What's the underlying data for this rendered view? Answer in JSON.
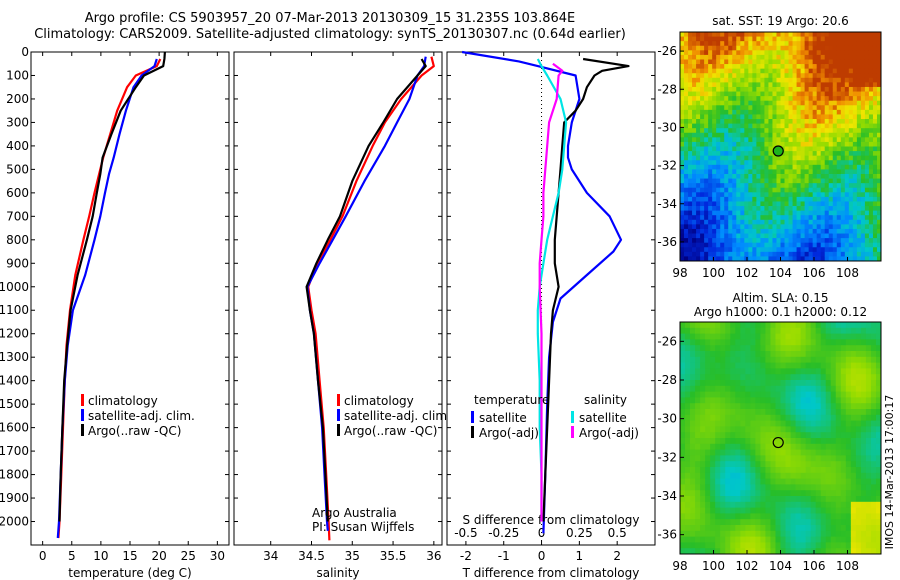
{
  "header": {
    "line1": "Argo profile: CS 5903957_20 07-Mar-2013 20130309_15 31.235S 103.864E",
    "line2": "Climatology: CARS2009. Satellite-adjusted climatology: synTS_20130307.nc (0.64d earlier)"
  },
  "credit": {
    "line1": "Argo Australia",
    "line2": "PI: Susan Wijffels"
  },
  "stamp": "IMOS 14-Mar-2013 17:00:17",
  "colors": {
    "climatology": "#ff0000",
    "satellite": "#0000ff",
    "argo": "#000000",
    "salinity_sat": "#00e5e5",
    "salinity_argo": "#ff00ff"
  },
  "chart_data": [
    {
      "type": "line",
      "xlabel": "temperature (deg C)",
      "ylabel": "",
      "xlim": [
        -2,
        32
      ],
      "ylim": [
        2100,
        0
      ],
      "xticks": [
        0,
        5,
        10,
        15,
        20,
        25,
        30
      ],
      "yticks": [
        0,
        100,
        200,
        300,
        400,
        500,
        600,
        700,
        800,
        900,
        1000,
        1100,
        1200,
        1300,
        1400,
        1500,
        1600,
        1700,
        1800,
        1900,
        2000
      ],
      "legend": [
        "climatology",
        "satellite-adj. clim.",
        "Argo(..raw -QC)"
      ],
      "legend_position": "bottom-center",
      "series": [
        {
          "name": "climatology",
          "color": "#ff0000",
          "points": [
            [
              20.2,
              30
            ],
            [
              19.6,
              60
            ],
            [
              16,
              100
            ],
            [
              14.5,
              150
            ],
            [
              12.8,
              250
            ],
            [
              11.6,
              350
            ],
            [
              10.4,
              450
            ],
            [
              9.7,
              520
            ],
            [
              8.9,
              600
            ],
            [
              8,
              700
            ],
            [
              7,
              800
            ],
            [
              5.6,
              950
            ],
            [
              4.7,
              1100
            ],
            [
              4.1,
              1250
            ],
            [
              3.8,
              1400
            ],
            [
              3.5,
              1600
            ],
            [
              3.2,
              1800
            ],
            [
              2.9,
              2000
            ],
            [
              2.7,
              2070
            ]
          ]
        },
        {
          "name": "satellite-adj. clim.",
          "color": "#0000ff",
          "points": [
            [
              19.6,
              30
            ],
            [
              19.2,
              60
            ],
            [
              17,
              100
            ],
            [
              15.6,
              150
            ],
            [
              14.3,
              250
            ],
            [
              13.2,
              350
            ],
            [
              12.2,
              450
            ],
            [
              11.4,
              520
            ],
            [
              10.7,
              600
            ],
            [
              9.9,
              700
            ],
            [
              8.9,
              800
            ],
            [
              7.3,
              950
            ],
            [
              5.2,
              1100
            ],
            [
              4.3,
              1250
            ],
            [
              3.8,
              1400
            ],
            [
              3.4,
              1600
            ],
            [
              3.1,
              1800
            ],
            [
              2.8,
              2000
            ],
            [
              2.6,
              2070
            ]
          ]
        },
        {
          "name": "Argo(..raw -QC)",
          "color": "#000000",
          "points": [
            [
              21,
              0
            ],
            [
              20.9,
              30
            ],
            [
              20.7,
              60
            ],
            [
              17.4,
              100
            ],
            [
              16,
              150
            ],
            [
              13.4,
              250
            ],
            [
              11.8,
              350
            ],
            [
              10.3,
              450
            ],
            [
              9.9,
              520
            ],
            [
              9.3,
              600
            ],
            [
              8.6,
              700
            ],
            [
              7.6,
              800
            ],
            [
              6,
              950
            ],
            [
              4.8,
              1100
            ],
            [
              4.2,
              1250
            ],
            [
              3.7,
              1400
            ],
            [
              3.4,
              1600
            ],
            [
              3.1,
              1800
            ],
            [
              2.9,
              2000
            ]
          ]
        }
      ]
    },
    {
      "type": "line",
      "xlabel": "salinity",
      "xlim": [
        33.55,
        36.1
      ],
      "ylim": [
        2100,
        0
      ],
      "xticks": [
        34,
        34.5,
        35,
        35.5,
        36
      ],
      "yticks": [
        0,
        100,
        200,
        300,
        400,
        500,
        600,
        700,
        800,
        900,
        1000,
        1100,
        1200,
        1300,
        1400,
        1500,
        1600,
        1700,
        1800,
        1900,
        2000
      ],
      "legend": [
        "climatology",
        "satellite-adj. clim.",
        "Argo(..raw -QC)"
      ],
      "legend_position": "bottom-center",
      "series": [
        {
          "name": "climatology",
          "color": "#ff0000",
          "points": [
            [
              35.97,
              20
            ],
            [
              36.0,
              60
            ],
            [
              35.85,
              100
            ],
            [
              35.6,
              200
            ],
            [
              35.4,
              300
            ],
            [
              35.25,
              400
            ],
            [
              35.05,
              550
            ],
            [
              34.88,
              700
            ],
            [
              34.73,
              800
            ],
            [
              34.57,
              900
            ],
            [
              34.46,
              1000
            ],
            [
              34.5,
              1100
            ],
            [
              34.55,
              1200
            ],
            [
              34.6,
              1400
            ],
            [
              34.65,
              1600
            ],
            [
              34.68,
              1800
            ],
            [
              34.71,
              2000
            ],
            [
              34.72,
              2080
            ]
          ]
        },
        {
          "name": "satellite-adj. clim.",
          "color": "#0000ff",
          "points": [
            [
              35.9,
              20
            ],
            [
              35.88,
              60
            ],
            [
              35.8,
              100
            ],
            [
              35.7,
              200
            ],
            [
              35.55,
              300
            ],
            [
              35.4,
              400
            ],
            [
              35.15,
              550
            ],
            [
              34.92,
              700
            ],
            [
              34.76,
              800
            ],
            [
              34.6,
              900
            ],
            [
              34.45,
              1000
            ],
            [
              34.48,
              1100
            ],
            [
              34.53,
              1200
            ],
            [
              34.58,
              1400
            ],
            [
              34.63,
              1600
            ],
            [
              34.66,
              1800
            ],
            [
              34.69,
              2000
            ],
            [
              34.7,
              2040
            ]
          ]
        },
        {
          "name": "Argo(..raw -QC)",
          "color": "#000000",
          "points": [
            [
              35.85,
              30
            ],
            [
              35.9,
              60
            ],
            [
              35.8,
              100
            ],
            [
              35.55,
              200
            ],
            [
              35.38,
              300
            ],
            [
              35.2,
              400
            ],
            [
              35.0,
              550
            ],
            [
              34.85,
              700
            ],
            [
              34.7,
              800
            ],
            [
              34.56,
              900
            ],
            [
              34.44,
              1000
            ],
            [
              34.48,
              1100
            ],
            [
              34.53,
              1200
            ],
            [
              34.58,
              1400
            ],
            [
              34.64,
              1600
            ],
            [
              34.67,
              1800
            ],
            [
              34.7,
              2000
            ]
          ]
        }
      ]
    },
    {
      "type": "line",
      "xlabel": "T difference from climatology",
      "x2label": "S difference from climatology",
      "xlim": [
        -2.5,
        3
      ],
      "ylim": [
        2100,
        0
      ],
      "xticks": [
        -2,
        -1,
        0,
        1,
        2
      ],
      "x2ticks": [
        "-0.5",
        "-0.25",
        "0",
        "0.25",
        "0.5"
      ],
      "yticks": [
        0,
        100,
        200,
        300,
        400,
        500,
        600,
        700,
        800,
        900,
        1000,
        1100,
        1200,
        1300,
        1400,
        1500,
        1600,
        1700,
        1800,
        1900,
        2000
      ],
      "legend_groups": [
        {
          "title": "temperature",
          "entries": [
            "satellite",
            "Argo(-adj)"
          ]
        },
        {
          "title": "salinity",
          "entries": [
            "satellite",
            "Argo(-adj)"
          ]
        }
      ],
      "legend_position": "bottom-center",
      "series": [
        {
          "name": "temperature satellite",
          "color": "#0000ff",
          "points": [
            [
              -2.1,
              0
            ],
            [
              -0.6,
              40
            ],
            [
              -0.1,
              60
            ],
            [
              0.9,
              100
            ],
            [
              1,
              200
            ],
            [
              0.8,
              300
            ],
            [
              0.7,
              400
            ],
            [
              0.7,
              450
            ],
            [
              0.8,
              500
            ],
            [
              1.2,
              600
            ],
            [
              1.8,
              700
            ],
            [
              2.1,
              800
            ],
            [
              1.9,
              850
            ],
            [
              1.2,
              950
            ],
            [
              0.5,
              1050
            ],
            [
              0.3,
              1150
            ],
            [
              0.2,
              1300
            ],
            [
              0.15,
              1500
            ],
            [
              0.1,
              1800
            ],
            [
              0.05,
              2050
            ]
          ]
        },
        {
          "name": "temperature Argo(-adj)",
          "color": "#000000",
          "points": [
            [
              1.1,
              30
            ],
            [
              2.3,
              60
            ],
            [
              1.6,
              80
            ],
            [
              1.4,
              100
            ],
            [
              1.2,
              150
            ],
            [
              1.1,
              200
            ],
            [
              0.9,
              250
            ],
            [
              0.6,
              300
            ],
            [
              0.55,
              400
            ],
            [
              0.5,
              500
            ],
            [
              0.45,
              600
            ],
            [
              0.4,
              700
            ],
            [
              0.35,
              800
            ],
            [
              0.35,
              900
            ],
            [
              0.45,
              1000
            ],
            [
              0.3,
              1100
            ],
            [
              0.25,
              1200
            ],
            [
              0.2,
              1400
            ],
            [
              0.15,
              1600
            ],
            [
              0.1,
              1800
            ],
            [
              0.05,
              2000
            ]
          ]
        },
        {
          "name": "salinity satellite",
          "color": "#00e5e5",
          "points": [
            [
              -0.1,
              30
            ],
            [
              0,
              60
            ],
            [
              0.15,
              100
            ],
            [
              0.5,
              200
            ],
            [
              0.65,
              300
            ],
            [
              0.6,
              400
            ],
            [
              0.55,
              500
            ],
            [
              0.45,
              600
            ],
            [
              0.3,
              700
            ],
            [
              0.15,
              800
            ],
            [
              0.05,
              900
            ],
            [
              -0.05,
              1000
            ],
            [
              -0.1,
              1100
            ],
            [
              -0.1,
              1200
            ],
            [
              -0.05,
              1400
            ],
            [
              -0.05,
              1600
            ],
            [
              0,
              1800
            ],
            [
              0,
              2000
            ]
          ]
        },
        {
          "name": "salinity Argo(-adj)",
          "color": "#ff00ff",
          "points": [
            [
              0.3,
              50
            ],
            [
              0.55,
              80
            ],
            [
              0.45,
              100
            ],
            [
              0.4,
              200
            ],
            [
              0.2,
              300
            ],
            [
              0.15,
              400
            ],
            [
              0.1,
              500
            ],
            [
              0.05,
              600
            ],
            [
              0.05,
              700
            ],
            [
              0,
              800
            ],
            [
              -0.05,
              900
            ],
            [
              -0.05,
              1000
            ],
            [
              0,
              1200
            ],
            [
              0,
              1500
            ],
            [
              0,
              1800
            ],
            [
              0,
              2000
            ]
          ]
        }
      ]
    },
    {
      "type": "heatmap",
      "title": "sat. SST: 19 Argo: 20.6",
      "xlim": [
        98,
        110
      ],
      "ylim": [
        -37,
        -25
      ],
      "xticks": [
        98,
        100,
        102,
        104,
        106,
        108
      ],
      "yticks": [
        -26,
        -28,
        -30,
        -32,
        -34,
        -36
      ],
      "marker": {
        "lon": 103.864,
        "lat": -31.235
      }
    },
    {
      "type": "heatmap",
      "title": "Altim. SLA: 0.15",
      "subtitle": "Argo h1000: 0.1 h2000: 0.12",
      "xlim": [
        98,
        110
      ],
      "ylim": [
        -37,
        -25
      ],
      "xticks": [
        98,
        100,
        102,
        104,
        106,
        108
      ],
      "yticks": [
        -26,
        -28,
        -30,
        -32,
        -34,
        -36
      ],
      "marker": {
        "lon": 103.864,
        "lat": -31.235
      }
    }
  ]
}
